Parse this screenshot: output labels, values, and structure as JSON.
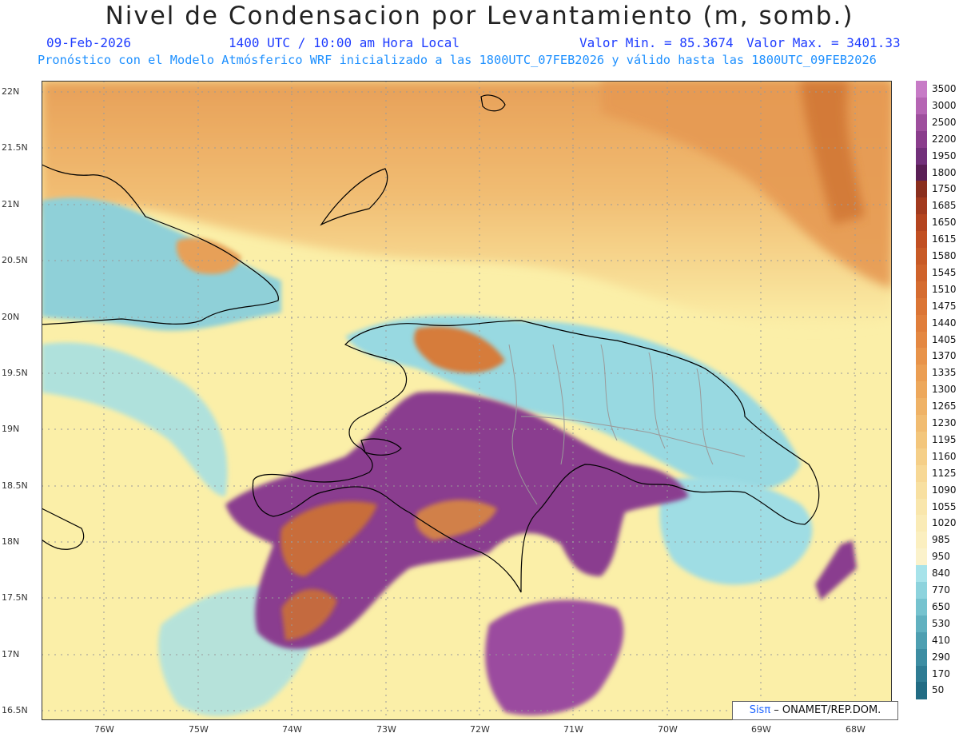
{
  "header": {
    "title": "Nivel de Condensacion por Levantamiento (m, somb.)",
    "date": "09-Feb-2026",
    "time": "1400 UTC / 10:00 am Hora Local",
    "min_label": "Valor Min. = 85.3674",
    "max_label": "Valor Max. = 3401.33",
    "forecast_info": "Pronóstico con el Modelo Atmósferico WRF inicializado a las 1800UTC_07FEB2026 y válido hasta las  1800UTC_09FEB2026"
  },
  "map": {
    "lon_labels": [
      "76W",
      "75W",
      "74W",
      "73W",
      "72W",
      "71W",
      "70W",
      "69W",
      "68W"
    ],
    "lat_labels": [
      "22N",
      "21.5N",
      "21N",
      "20.5N",
      "20N",
      "19.5N",
      "19N",
      "18.5N",
      "18N",
      "17.5N",
      "17N",
      "16.5N"
    ],
    "colors": {
      "cool": "#9fdde4",
      "neutral": "#fbefa8",
      "warm": "#eea55a",
      "hot": "#d06a2a",
      "purple": "#8a3d8f",
      "coast": "#000000",
      "border": "#9a9a9a"
    }
  },
  "colorbar": {
    "labels": [
      "3500",
      "3000",
      "2500",
      "2200",
      "1950",
      "1800",
      "1750",
      "1685",
      "1650",
      "1615",
      "1580",
      "1545",
      "1510",
      "1475",
      "1440",
      "1405",
      "1370",
      "1335",
      "1300",
      "1265",
      "1230",
      "1195",
      "1160",
      "1125",
      "1090",
      "1055",
      "1020",
      "985",
      "950",
      "840",
      "770",
      "650",
      "530",
      "410",
      "290",
      "170",
      "50"
    ],
    "colors": [
      "#c77bc6",
      "#b565b3",
      "#9e4f9d",
      "#8a3d8c",
      "#72307a",
      "#5a1f55",
      "#8a2f1e",
      "#a23a1e",
      "#b4441f",
      "#c14f22",
      "#c85a26",
      "#cf632b",
      "#d56c30",
      "#db7535",
      "#e07e3b",
      "#e48842",
      "#e8934a",
      "#eb9e53",
      "#eda85c",
      "#efb266",
      "#f1bc71",
      "#f3c67c",
      "#f5cf88",
      "#f7d895",
      "#f8e0a1",
      "#f9e6ac",
      "#faebb6",
      "#fbefc0",
      "#fbf2cb",
      "#a7e3ea",
      "#8dd3dd",
      "#76c3cf",
      "#61b1c0",
      "#4e9fb1",
      "#3d8da2",
      "#2f7c93",
      "#226c84"
    ]
  },
  "credit": {
    "sis": "Sisπ",
    "text": " – ONAMET/REP.DOM."
  }
}
